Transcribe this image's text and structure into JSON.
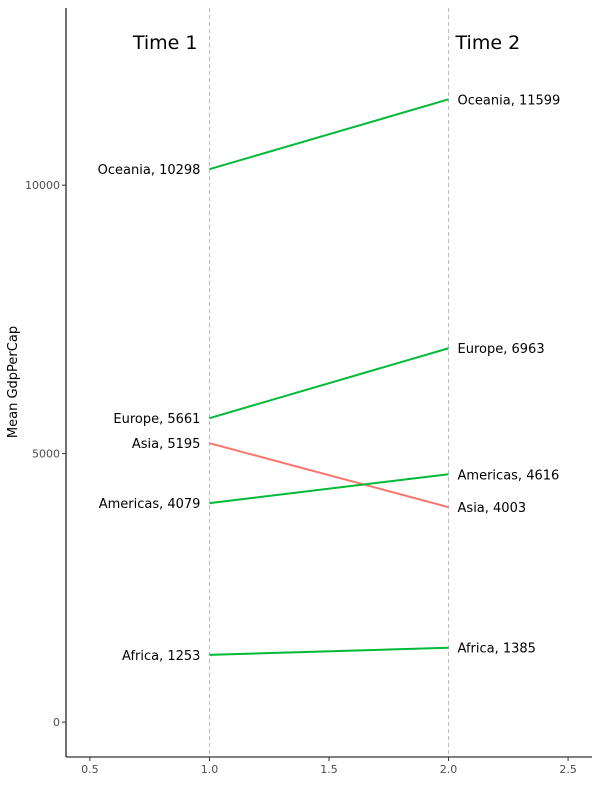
{
  "chart_data": {
    "type": "line",
    "subtype": "slope",
    "ylabel": "Mean GdpPerCap",
    "xlabel": "",
    "xlim": [
      0.4,
      2.6
    ],
    "ylim": [
      -650,
      13300
    ],
    "x_ticks": [
      0.5,
      1.0,
      1.5,
      2.0,
      2.5
    ],
    "x_tick_labels": [
      "0.5",
      "1.0",
      "1.5",
      "2.0",
      "2.5"
    ],
    "y_ticks": [
      0,
      5000,
      10000
    ],
    "y_tick_labels": [
      "0",
      "5000",
      "10000"
    ],
    "grid": false,
    "time_headers": [
      {
        "x": 1,
        "label": "Time 1"
      },
      {
        "x": 2,
        "label": "Time 2"
      }
    ],
    "colors": {
      "increase": "#00BA38",
      "decrease": "#F8766D",
      "guide": "#bbbbbb",
      "axis": "#000000"
    },
    "series": [
      {
        "name": "Oceania",
        "values": [
          10298,
          11599
        ],
        "labels": [
          "Oceania, 10298",
          "Oceania, 11599"
        ],
        "direction": "increase"
      },
      {
        "name": "Europe",
        "values": [
          5661,
          6963
        ],
        "labels": [
          "Europe, 5661",
          "Europe, 6963"
        ],
        "direction": "increase"
      },
      {
        "name": "Asia",
        "values": [
          5195,
          4003
        ],
        "labels": [
          "Asia, 5195",
          "Asia, 4003"
        ],
        "direction": "decrease"
      },
      {
        "name": "Americas",
        "values": [
          4079,
          4616
        ],
        "labels": [
          "Americas, 4079",
          "Americas, 4616"
        ],
        "direction": "increase"
      },
      {
        "name": "Africa",
        "values": [
          1253,
          1385
        ],
        "labels": [
          "Africa, 1253",
          "Africa, 1385"
        ],
        "direction": "increase"
      }
    ]
  }
}
